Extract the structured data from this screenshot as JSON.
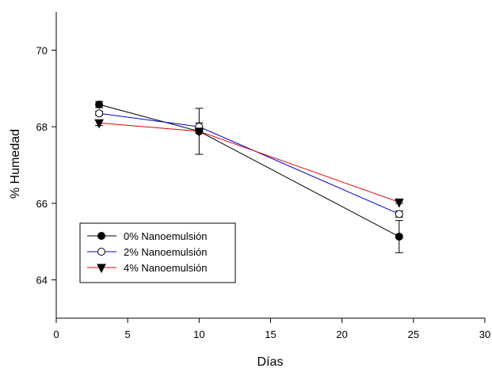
{
  "chart_data": {
    "type": "line",
    "xlabel": "Días",
    "ylabel": "% Humedad",
    "xlim": [
      0,
      30
    ],
    "ylim": [
      63,
      71
    ],
    "xticks": [
      0,
      5,
      10,
      15,
      20,
      25,
      30
    ],
    "yticks": [
      64,
      66,
      68,
      70
    ],
    "grid": false,
    "legend_position": "lower-left",
    "x": [
      3,
      10,
      24
    ],
    "series": [
      {
        "name": "0% Nanoemulsión",
        "values": [
          68.58,
          67.88,
          65.13
        ],
        "errors": [
          0.08,
          0.6,
          0.42
        ],
        "color": "#000000",
        "marker": "filled-circle"
      },
      {
        "name": "2% Nanoemulsión",
        "values": [
          68.35,
          68.0,
          65.72
        ],
        "errors": [
          0.05,
          0.1,
          0.08
        ],
        "color": "#0000cc",
        "marker": "open-circle"
      },
      {
        "name": "4% Nanoemulsión",
        "values": [
          68.1,
          67.88,
          66.03
        ],
        "errors": [
          0.07,
          0.05,
          0.03
        ],
        "color": "#e00000",
        "marker": "filled-triangle-down"
      }
    ]
  }
}
